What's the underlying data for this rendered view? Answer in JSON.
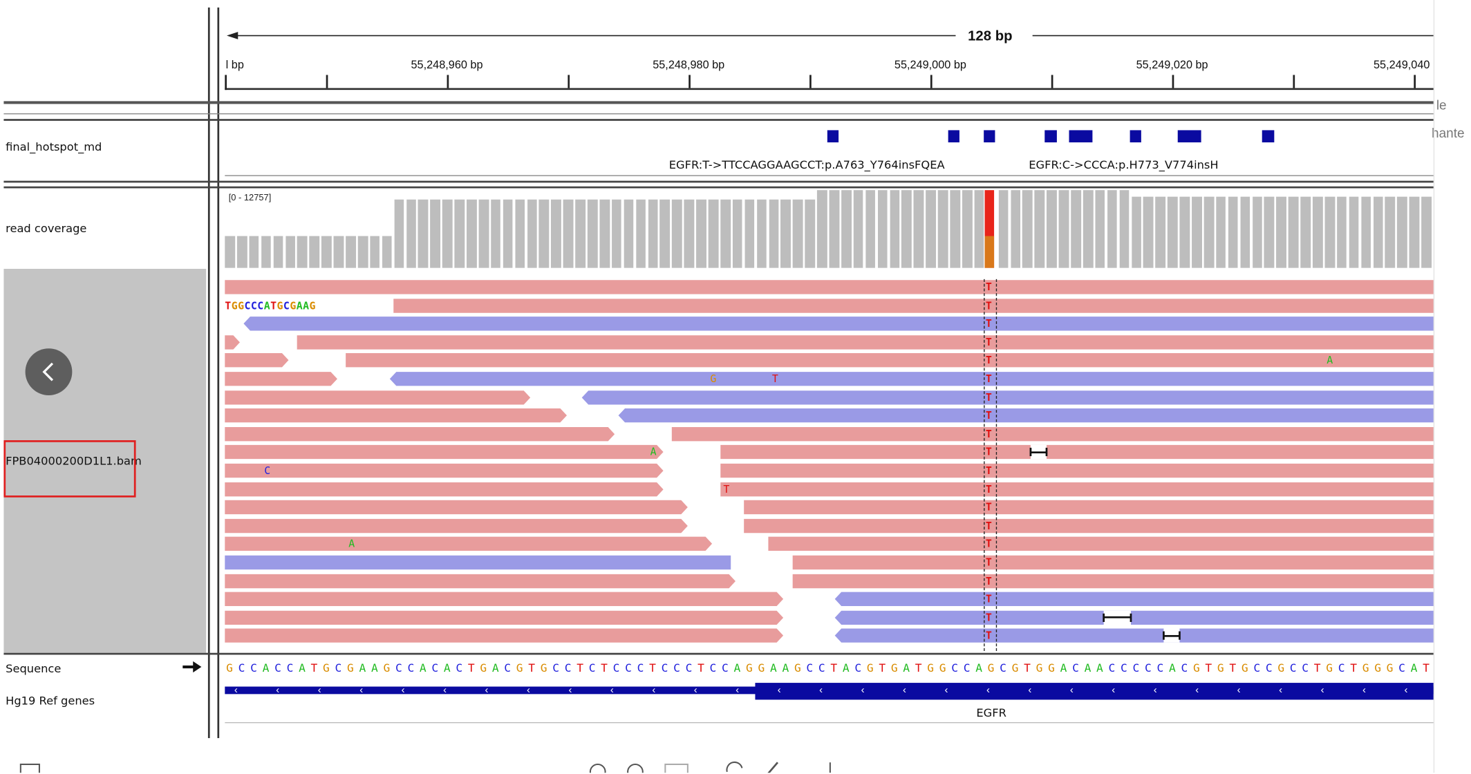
{
  "ruler": {
    "span_label": "128 bp",
    "ticks": [
      {
        "label": "l bp",
        "align": "left"
      },
      {
        "label": "55,248,960 bp"
      },
      {
        "label": "55,248,980 bp"
      },
      {
        "label": "55,249,000 bp"
      },
      {
        "label": "55,249,020 bp"
      },
      {
        "label": "55,249,040",
        "align": "right"
      }
    ]
  },
  "side_clip": {
    "text1": "le",
    "text2": "hante"
  },
  "tracks": {
    "hotspot": {
      "name": "final_hotspot_md",
      "feature_labels": [
        "EGFR:T->TTCCAGGAAGCCT:p.A763_Y764insFQEA",
        "EGFR:C->CCCA:p.H773_V774insH"
      ]
    },
    "coverage": {
      "name": "read coverage",
      "range": "[0 - 12757]"
    },
    "alignment": {
      "name": "FPB04000200D1L1.bam",
      "softclip": "TGGCCCATGCGAAG"
    },
    "sequence": {
      "name": "Sequence",
      "bases": "GCCACCATGCGAAGCCACACTGACGTGCCTCTCCCTCCCTCCAGGAAGCCTACGTGATGGCCAGCGTGGACAACCCCCACGTGTGCCGCCTGCTGGGCAT"
    },
    "genes": {
      "name": "Hg19 Ref genes",
      "gene_label": "EGFR"
    }
  },
  "colors": {
    "forward_read": "#e89c9c",
    "reverse_read": "#9a9ae6",
    "feature": "#0a0aa0",
    "coverage": "#bdbdbd",
    "highlight": "#e8241a",
    "base_A": "#22bb22",
    "base_C": "#2222dd",
    "base_G": "#d98c00",
    "base_T": "#e01010"
  },
  "mismatches": [
    {
      "base": "A",
      "row": 4
    },
    {
      "base": "G",
      "row": 5
    },
    {
      "base": "T",
      "row": 5
    },
    {
      "base": "A",
      "row": 9
    },
    {
      "base": "C",
      "row": 10
    },
    {
      "base": "T",
      "row": 11
    },
    {
      "base": "A",
      "row": 14
    }
  ],
  "variant_base": "T",
  "icons": {
    "back": "chevron-left-icon"
  }
}
